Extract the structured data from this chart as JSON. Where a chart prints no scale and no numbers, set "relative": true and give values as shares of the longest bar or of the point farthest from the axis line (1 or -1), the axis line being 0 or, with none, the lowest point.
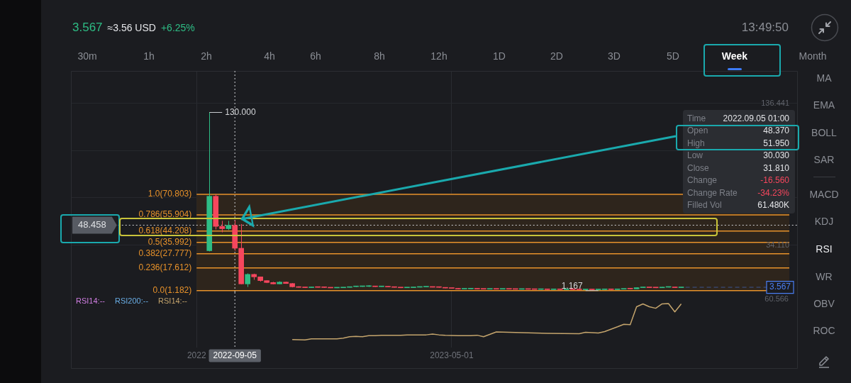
{
  "chart_data": [
    {
      "type": "other",
      "annotations": [
        "3.567",
        "≈3.56 USD",
        "+6.25%",
        "13:49:50",
        "30m",
        "1h",
        "2h",
        "4h",
        "6h",
        "8h",
        "12h",
        "1D",
        "2D",
        "3D",
        "5D",
        "Week",
        "Month"
      ]
    },
    {
      "type": "candlestick",
      "x": [
        "2022-08-08",
        "2022-08-15",
        "2022-08-22",
        "2022-08-29",
        "2022-09-05",
        "2022-09-12",
        "2022-09-19",
        "2022-09-26",
        "2022-10-03",
        "2022-10-10",
        "2022-10-17",
        "2022-10-24",
        "2022-10-31",
        "2022-11-07",
        "2022-11-14",
        "2022-11-21",
        "2022-11-28",
        "2022-12-05",
        "2022-12-12",
        "2022-12-19",
        "2022-12-26",
        "2023-01-02",
        "2023-01-09",
        "2023-01-16",
        "2023-01-23",
        "2023-01-30",
        "2023-02-06",
        "2023-02-13",
        "2023-02-20",
        "2023-02-27",
        "2023-03-06",
        "2023-03-13",
        "2023-03-20",
        "2023-03-27",
        "2023-04-03",
        "2023-04-10",
        "2023-04-17",
        "2023-04-24",
        "2023-05-01",
        "2023-05-08",
        "2023-05-15",
        "2023-05-22",
        "2023-05-29",
        "2023-06-05",
        "2023-06-12",
        "2023-06-19",
        "2023-06-26",
        "2023-07-03",
        "2023-07-10",
        "2023-07-17",
        "2023-07-24",
        "2023-07-31",
        "2023-08-07",
        "2023-08-14",
        "2023-08-21",
        "2023-08-28",
        "2023-09-04",
        "2023-09-11",
        "2023-09-18",
        "2023-09-25",
        "2023-10-02",
        "2023-10-09",
        "2023-10-16",
        "2023-10-23",
        "2023-10-30",
        "2023-11-06",
        "2023-11-13",
        "2023-11-20",
        "2023-11-27",
        "2023-12-04",
        "2023-12-11",
        "2023-12-18",
        "2023-12-25",
        "2024-01-01",
        "2024-01-08"
      ],
      "ohlc": [
        [
          30,
          130,
          29.5,
          69.4
        ],
        [
          69.4,
          70.803,
          45.4,
          47.6
        ],
        [
          47.6,
          51.6,
          43.3,
          45.9
        ],
        [
          45.9,
          51.6,
          45,
          48.4
        ],
        [
          48.37,
          51.95,
          30.03,
          31.81
        ],
        [
          31.8,
          49.3,
          5.8,
          6
        ],
        [
          6,
          13.6,
          3.8,
          12.9
        ],
        [
          12.9,
          13.4,
          9,
          11.1
        ],
        [
          11.1,
          11.3,
          7.7,
          8.4
        ],
        [
          8.4,
          8.6,
          6.6,
          7
        ],
        [
          7,
          7.5,
          5.8,
          6
        ],
        [
          6,
          7.9,
          5.9,
          7.3
        ],
        [
          7.3,
          7.6,
          6.1,
          6.3
        ],
        [
          6.3,
          6.6,
          3.5,
          3.9
        ],
        [
          3.9,
          4.3,
          3.3,
          3.5
        ],
        [
          3.5,
          3.7,
          3.1,
          3.3
        ],
        [
          3.3,
          3.8,
          3.2,
          3.6
        ],
        [
          3.6,
          3.8,
          3.4,
          3.5
        ],
        [
          3.5,
          3.6,
          3.2,
          3.4
        ],
        [
          3.4,
          3.5,
          3,
          3.1
        ],
        [
          3.1,
          3.3,
          3,
          3.2
        ],
        [
          3.2,
          3.6,
          3.1,
          3.5
        ],
        [
          3.5,
          4.1,
          3.4,
          4
        ],
        [
          4,
          4.4,
          3.8,
          4.1
        ],
        [
          4.1,
          4.5,
          3.9,
          4.2
        ],
        [
          4.2,
          5.1,
          3.8,
          4.3
        ],
        [
          4.3,
          4.5,
          3.9,
          4
        ],
        [
          4,
          4.4,
          3.9,
          4.1
        ],
        [
          4.1,
          4.3,
          3.7,
          3.8
        ],
        [
          3.8,
          3.9,
          3.4,
          3.5
        ],
        [
          3.5,
          3.6,
          3,
          3.2
        ],
        [
          3.2,
          3.5,
          3.1,
          3.3
        ],
        [
          3.3,
          3.7,
          3.2,
          3.6
        ],
        [
          3.6,
          3.9,
          3.5,
          3.8
        ],
        [
          3.8,
          4,
          3.6,
          3.9
        ],
        [
          3.9,
          4,
          3.5,
          3.6
        ],
        [
          3.6,
          3.7,
          3.3,
          3.5
        ],
        [
          3.5,
          3.6,
          2.9,
          3
        ],
        [
          3,
          3.1,
          2.7,
          2.8
        ],
        [
          2.8,
          2.9,
          2.2,
          2.3
        ],
        [
          2.3,
          2.5,
          2.2,
          2.4
        ],
        [
          2.4,
          2.6,
          2.3,
          2.5
        ],
        [
          2.5,
          2.6,
          2.2,
          2.3
        ],
        [
          2.3,
          2.4,
          2.1,
          2.2
        ],
        [
          2.2,
          2.4,
          2.1,
          2.3
        ],
        [
          2.3,
          2.4,
          2.1,
          2.2
        ],
        [
          2.2,
          2.4,
          2.1,
          2.3
        ],
        [
          2.3,
          2.4,
          2.1,
          2.2
        ],
        [
          2.2,
          2.3,
          2,
          2.1
        ],
        [
          2.1,
          2.3,
          2,
          2.2
        ],
        [
          2.2,
          2.3,
          2,
          2.1
        ],
        [
          2.1,
          2.2,
          1.9,
          2
        ],
        [
          2,
          2.2,
          1.9,
          2.1
        ],
        [
          2.1,
          2.2,
          1.8,
          1.9
        ],
        [
          1.9,
          2.1,
          1.8,
          2
        ],
        [
          2,
          2.1,
          1.8,
          1.9
        ],
        [
          1.9,
          2.1,
          1.8,
          2
        ],
        [
          2,
          2.1,
          1.8,
          1.9
        ],
        [
          1.9,
          2,
          1.7,
          1.8
        ],
        [
          1.8,
          2,
          1.7,
          1.9
        ],
        [
          1.9,
          2,
          1.7,
          1.8
        ],
        [
          1.8,
          2,
          1.167,
          1.9
        ],
        [
          1.9,
          2.1,
          1.8,
          2
        ],
        [
          2,
          2.1,
          1.8,
          1.9
        ],
        [
          1.9,
          2.3,
          1.8,
          2.2
        ],
        [
          2.2,
          2.6,
          2.1,
          2.5
        ],
        [
          2.5,
          2.7,
          2.3,
          2.4
        ],
        [
          2.4,
          3.6,
          2.3,
          3.3
        ],
        [
          3.3,
          3.7,
          3.1,
          3.5
        ],
        [
          3.5,
          3.6,
          3.2,
          3.3
        ],
        [
          3.3,
          3.4,
          3,
          3.2
        ],
        [
          3.2,
          3.8,
          3.1,
          3.6
        ],
        [
          3.6,
          3.9,
          3.4,
          3.7
        ],
        [
          3.7,
          3.8,
          3.2,
          3.3
        ],
        [
          3.3,
          3.7,
          3.2,
          3.567
        ]
      ],
      "colors": [
        "#2ebd85",
        "#f6465d",
        "#f6465d",
        "#2ebd85",
        "#f6465d",
        "#f6465d",
        "#2ebd85",
        "#f6465d",
        "#f6465d",
        "#f6465d",
        "#f6465d",
        "#2ebd85",
        "#f6465d",
        "#f6465d",
        "#f6465d",
        "#f6465d",
        "#2ebd85",
        "#f6465d",
        "#f6465d",
        "#f6465d",
        "#2ebd85",
        "#2ebd85",
        "#2ebd85",
        "#2ebd85",
        "#2ebd85",
        "#2ebd85",
        "#f6465d",
        "#2ebd85",
        "#f6465d",
        "#f6465d",
        "#f6465d",
        "#2ebd85",
        "#2ebd85",
        "#2ebd85",
        "#2ebd85",
        "#f6465d",
        "#f6465d",
        "#f6465d",
        "#f6465d",
        "#f6465d",
        "#2ebd85",
        "#2ebd85",
        "#f6465d",
        "#f6465d",
        "#2ebd85",
        "#f6465d",
        "#2ebd85",
        "#f6465d",
        "#f6465d",
        "#2ebd85",
        "#f6465d",
        "#f6465d",
        "#2ebd85",
        "#f6465d",
        "#2ebd85",
        "#f6465d",
        "#2ebd85",
        "#f6465d",
        "#f6465d",
        "#2ebd85",
        "#f6465d",
        "#2ebd85",
        "#2ebd85",
        "#f6465d",
        "#2ebd85",
        "#2ebd85",
        "#f6465d",
        "#2ebd85",
        "#2ebd85",
        "#f6465d",
        "#f6465d",
        "#2ebd85",
        "#2ebd85",
        "#f6465d",
        "#2ebd85"
      ],
      "xlim": [
        "2022-03-09",
        "2024-05-15"
      ],
      "xticks": [
        {
          "value": "2022-07-25",
          "label": null
        },
        {
          "value": "2023-05-01",
          "label": null
        }
      ],
      "ylim": [
        0,
        160
      ],
      "yticks": [
        {
          "value": 34.11,
          "label": "34.110"
        },
        {
          "value": 68.221,
          "label": null
        },
        {
          "value": 102.331,
          "label": null
        },
        {
          "value": 136.441,
          "label": "136.441"
        }
      ],
      "grid": true,
      "tick_labels": "y",
      "bands": [
        {
          "axis": "y",
          "from": 1.182,
          "to": 70.803,
          "color": "#2e251c"
        }
      ],
      "ref_lines": [
        {
          "axis": "y",
          "value": 70.803,
          "label": "1.0(70.803)",
          "color": "#e8922a"
        },
        {
          "axis": "y",
          "value": 55.904,
          "label": "0.786(55.904)",
          "color": "#e8922a"
        },
        {
          "axis": "y",
          "value": 44.208,
          "label": "0.618(44.208)",
          "color": "#e8922a"
        },
        {
          "axis": "y",
          "value": 35.992,
          "label": "0.5(35.992)",
          "color": "#e8922a"
        },
        {
          "axis": "y",
          "value": 27.777,
          "label": "0.382(27.777)",
          "color": "#e8922a"
        },
        {
          "axis": "y",
          "value": 17.612,
          "label": "0.236(17.612)",
          "color": "#e8922a"
        },
        {
          "axis": "y",
          "value": 1.182,
          "label": "0.0(1.182)",
          "color": "#e8922a"
        },
        {
          "axis": "y",
          "value": 48.458,
          "label": "48.458",
          "color": "#cfd1d4",
          "line_style": "dotted"
        },
        {
          "axis": "x",
          "value": "2022-09-05",
          "color": "#cfd1d4",
          "line_style": "dotted"
        },
        {
          "axis": "y",
          "value": 3.567,
          "label": "3.567",
          "color": "#4a7df0",
          "line_style": "dashed"
        }
      ],
      "annotations": [
        "Time",
        "2022.09.05 01:00",
        "Open",
        "48.370",
        "High",
        "51.950",
        "Low",
        "30.030",
        "Close",
        "31.810",
        "Change",
        "-16.560",
        "Change Rate",
        "-34.23%",
        "Filled Vol",
        "61.480K",
        {
          "text": "130.000",
          "x": "2022-08-08",
          "y": 130
        },
        {
          "text": "1.167",
          "x": "2023-10-09",
          "y": 1.167
        }
      ]
    },
    {
      "type": "line",
      "relative": true,
      "x": [
        "2022-11-07",
        "2022-11-21",
        "2022-11-28",
        "2022-12-26",
        "2023-01-02",
        "2023-01-09",
        "2023-01-16",
        "2023-01-23",
        "2023-01-30",
        "2023-02-06",
        "2023-02-13",
        "2023-03-06",
        "2023-03-13",
        "2023-04-03",
        "2023-04-10",
        "2023-04-17",
        "2023-04-24",
        "2023-05-08",
        "2023-05-22",
        "2023-05-29",
        "2023-06-05",
        "2023-06-19",
        "2023-07-03",
        "2023-07-31",
        "2023-08-14",
        "2023-09-18",
        "2023-09-25",
        "2023-10-09",
        "2023-10-16",
        "2023-10-30",
        "2023-11-06",
        "2023-11-13",
        "2023-11-20",
        "2023-11-27",
        "2023-12-04",
        "2023-12-11",
        "2023-12-18",
        "2023-12-25",
        "2024-01-01",
        "2024-01-08"
      ],
      "series": [
        {
          "color": "#c4a46c",
          "values": [
            0.01,
            0,
            0.03,
            0.03,
            0.05,
            0.09,
            0.1,
            0.09,
            0.12,
            0.12,
            0.13,
            0.13,
            0.14,
            0.14,
            0.16,
            0.14,
            0.13,
            0.12,
            0.12,
            0.13,
            0.09,
            0.22,
            0.21,
            0.19,
            0.18,
            0.17,
            0.21,
            0.19,
            0.23,
            0.36,
            0.43,
            0.42,
            0.91,
            0.99,
            0.91,
            0.87,
            0.99,
            1,
            0.77,
            0.99
          ]
        }
      ],
      "xlim": [
        "2022-03-09",
        "2024-05-15"
      ],
      "xticks": [
        {
          "value": "2022-07-25",
          "label": "2022"
        },
        {
          "value": "2023-05-01",
          "label": "2023-05-01"
        }
      ],
      "grid": "x",
      "tick_labels": "x",
      "ref_lines": [
        {
          "axis": "x",
          "value": "2022-09-05",
          "label": "2022-09-05",
          "color": "#cfd1d4",
          "line_style": "dotted"
        }
      ],
      "annotations": [
        "RSI14:--",
        "RSI200:--",
        "RSI14:--",
        "60.566"
      ]
    },
    {
      "type": "other",
      "annotations": [
        "MA",
        "EMA",
        "BOLL",
        "SAR",
        "MACD",
        "KDJ",
        "RSI",
        "WR",
        "OBV",
        "ROC"
      ]
    }
  ]
}
